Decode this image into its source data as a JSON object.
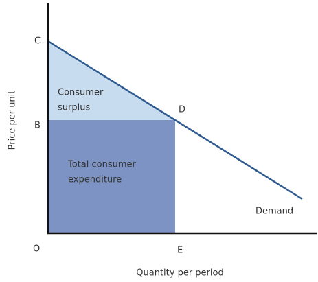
{
  "points": {
    "c": "C",
    "b": "B",
    "o": "O",
    "d": "D",
    "e": "E"
  },
  "regions": {
    "surplus": [
      "Consumer",
      "surplus"
    ],
    "expenditure": [
      "Total consumer",
      "expenditure"
    ]
  },
  "curve_label": "Demand",
  "axes": {
    "y_label": "Price per unit",
    "x_label": "Quantity per period"
  }
}
